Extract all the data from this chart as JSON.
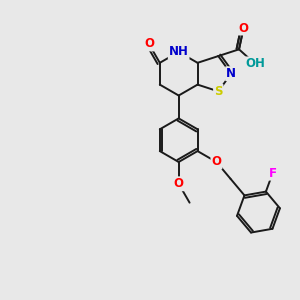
{
  "background_color": "#e8e8e8",
  "bond_color": "#1a1a1a",
  "atom_colors": {
    "N": "#0000cc",
    "O": "#ff0000",
    "S": "#cccc00",
    "F": "#ff00ff",
    "H": "#009999",
    "C": "#1a1a1a"
  }
}
